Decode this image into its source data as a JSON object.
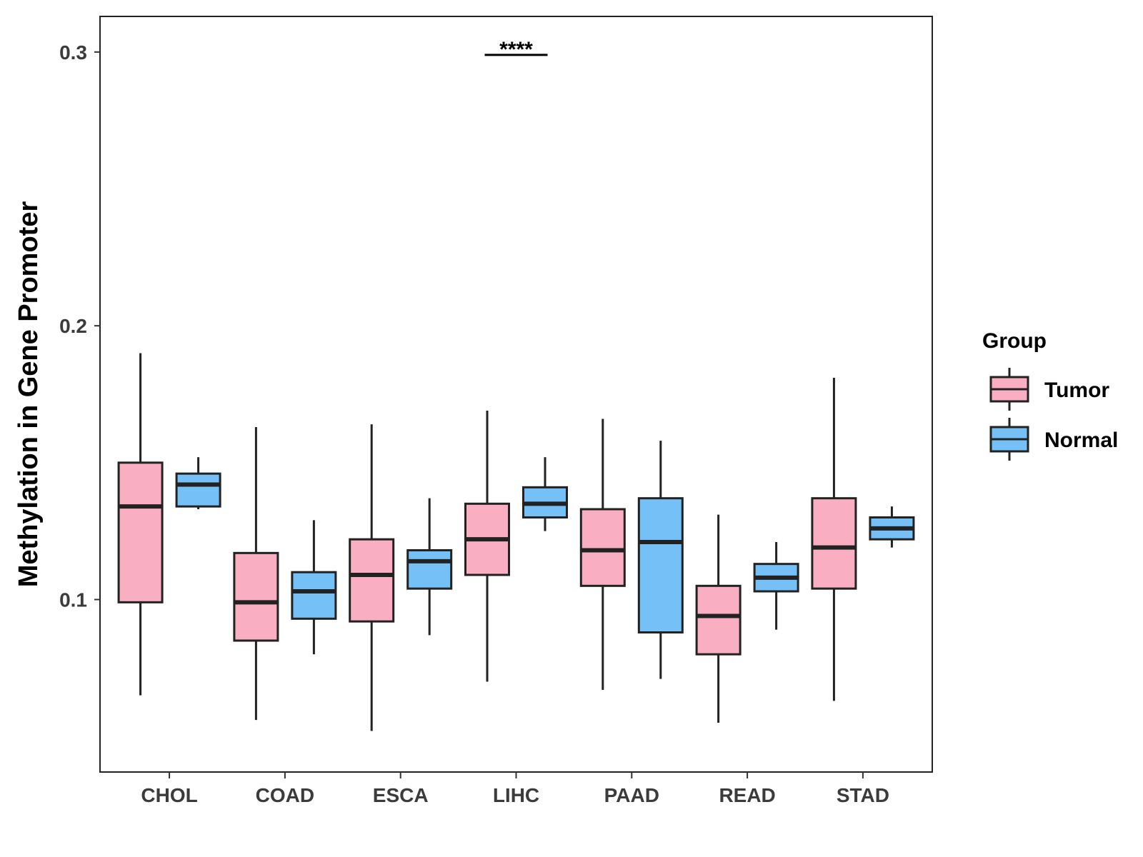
{
  "chart_data": {
    "type": "boxplot",
    "title": "",
    "xlabel": "",
    "ylabel": "Methylation in Gene Promoter",
    "ylim": [
      0.037,
      0.313
    ],
    "yticks": [
      0.1,
      0.2,
      0.3
    ],
    "ytick_labels": [
      "0.1",
      "0.2",
      "0.3"
    ],
    "grid": false,
    "legend": {
      "title": "Group",
      "position": "right",
      "entries": [
        {
          "name": "Tumor",
          "color": "#F9AFC1"
        },
        {
          "name": "Normal",
          "color": "#75C1F7"
        }
      ]
    },
    "categories": [
      "CHOL",
      "COAD",
      "ESCA",
      "LIHC",
      "PAAD",
      "READ",
      "STAD"
    ],
    "series": [
      {
        "name": "Tumor",
        "color": "#F9AFC1",
        "boxes": [
          {
            "min": 0.065,
            "q1": 0.099,
            "median": 0.134,
            "q3": 0.15,
            "max": 0.19
          },
          {
            "min": 0.056,
            "q1": 0.085,
            "median": 0.099,
            "q3": 0.117,
            "max": 0.163
          },
          {
            "min": 0.052,
            "q1": 0.092,
            "median": 0.109,
            "q3": 0.122,
            "max": 0.164
          },
          {
            "min": 0.07,
            "q1": 0.109,
            "median": 0.122,
            "q3": 0.135,
            "max": 0.169
          },
          {
            "min": 0.067,
            "q1": 0.105,
            "median": 0.118,
            "q3": 0.133,
            "max": 0.166
          },
          {
            "min": 0.055,
            "q1": 0.08,
            "median": 0.094,
            "q3": 0.105,
            "max": 0.131
          },
          {
            "min": 0.063,
            "q1": 0.104,
            "median": 0.119,
            "q3": 0.137,
            "max": 0.181
          }
        ]
      },
      {
        "name": "Normal",
        "color": "#75C1F7",
        "boxes": [
          {
            "min": 0.133,
            "q1": 0.134,
            "median": 0.142,
            "q3": 0.146,
            "max": 0.152
          },
          {
            "min": 0.08,
            "q1": 0.093,
            "median": 0.103,
            "q3": 0.11,
            "max": 0.129
          },
          {
            "min": 0.087,
            "q1": 0.104,
            "median": 0.114,
            "q3": 0.118,
            "max": 0.137
          },
          {
            "min": 0.125,
            "q1": 0.13,
            "median": 0.135,
            "q3": 0.141,
            "max": 0.152
          },
          {
            "min": 0.071,
            "q1": 0.088,
            "median": 0.121,
            "q3": 0.137,
            "max": 0.158
          },
          {
            "min": 0.089,
            "q1": 0.103,
            "median": 0.108,
            "q3": 0.113,
            "max": 0.121
          },
          {
            "min": 0.119,
            "q1": 0.122,
            "median": 0.126,
            "q3": 0.13,
            "max": 0.134
          }
        ]
      }
    ],
    "annotations": [
      {
        "category": "LIHC",
        "text": "****",
        "y": 0.3
      }
    ]
  }
}
